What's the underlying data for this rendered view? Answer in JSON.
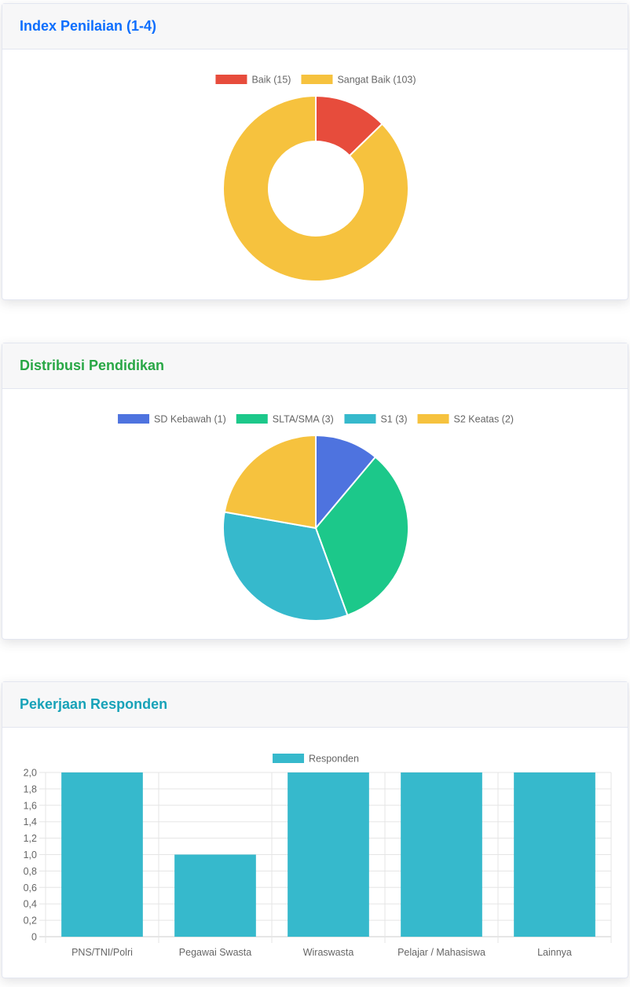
{
  "cards": [
    {
      "title": "Index Penilaian (1-4)",
      "title_color": "#0d6efd"
    },
    {
      "title": "Distribusi Pendidikan",
      "title_color": "#28a745"
    },
    {
      "title": "Pekerjaan Responden",
      "title_color": "#17a2b8"
    }
  ],
  "chart_data": [
    {
      "type": "pie",
      "variant": "doughnut",
      "title": "Index Penilaian (1-4)",
      "categories": [
        "Baik (15)",
        "Sangat Baik (103)"
      ],
      "values": [
        15,
        103
      ],
      "colors": [
        "#e74c3c",
        "#f6c23e"
      ],
      "legend": "top"
    },
    {
      "type": "pie",
      "title": "Distribusi Pendidikan",
      "categories": [
        "SD Kebawah (1)",
        "SLTA/SMA (3)",
        "S1 (3)",
        "S2 Keatas (2)"
      ],
      "values": [
        1,
        3,
        3,
        2
      ],
      "colors": [
        "#4e73df",
        "#1cc88a",
        "#36b9cc",
        "#f6c23e"
      ],
      "legend": "top"
    },
    {
      "type": "bar",
      "title": "Pekerjaan Responden",
      "categories": [
        "PNS/TNI/Polri",
        "Pegawai Swasta",
        "Wiraswasta",
        "Pelajar / Mahasiswa",
        "Lainnya"
      ],
      "series": [
        {
          "name": "Responden",
          "values": [
            2,
            1,
            2,
            2,
            2
          ],
          "color": "#36b9cc"
        }
      ],
      "ylim": [
        0,
        2
      ],
      "yticks": [
        "0",
        "0,2",
        "0,4",
        "0,6",
        "0,8",
        "1,0",
        "1,2",
        "1,4",
        "1,6",
        "1,8",
        "2,0"
      ],
      "grid": true,
      "legend": "top"
    }
  ]
}
